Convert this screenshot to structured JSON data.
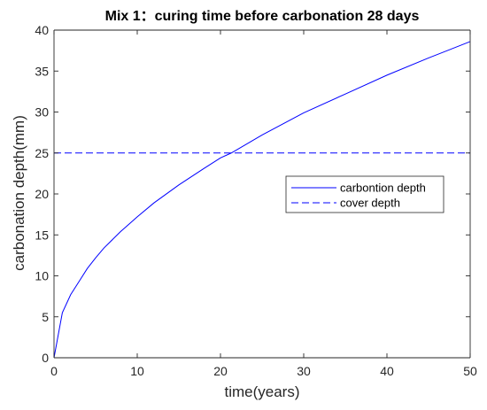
{
  "chart_data": {
    "type": "line",
    "title": "Mix 1：curing time before carbonation 28 days",
    "xlabel": "time(years)",
    "ylabel": "carbonation depth(mm)",
    "xlim": [
      0,
      50
    ],
    "ylim": [
      0,
      40
    ],
    "xticks": [
      0,
      10,
      20,
      30,
      40,
      50
    ],
    "yticks": [
      0,
      5,
      10,
      15,
      20,
      25,
      30,
      35,
      40
    ],
    "grid": false,
    "legend_position": "right",
    "series": [
      {
        "name": "carbontion depth",
        "style": "solid",
        "color": "#0000ff",
        "x": [
          0,
          1,
          2,
          3,
          4,
          5,
          6,
          8,
          10,
          12,
          15,
          18,
          20,
          21.3,
          25,
          30,
          35,
          40,
          45,
          50
        ],
        "y": [
          0,
          5.5,
          7.7,
          9.3,
          10.9,
          12.2,
          13.4,
          15.4,
          17.2,
          18.9,
          21.1,
          23.1,
          24.4,
          25.0,
          27.2,
          29.9,
          32.2,
          34.5,
          36.6,
          38.6
        ]
      },
      {
        "name": "cover depth",
        "style": "dashed",
        "color": "#0000ff",
        "x": [
          0,
          50
        ],
        "y": [
          25,
          25
        ]
      }
    ]
  }
}
